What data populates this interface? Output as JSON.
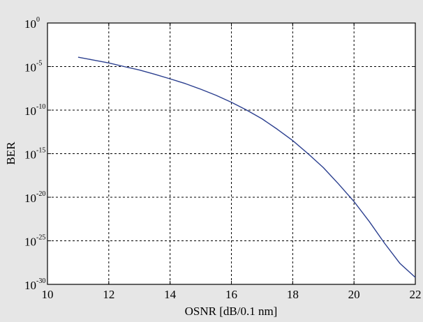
{
  "chart_data": {
    "type": "line",
    "title": "",
    "xlabel": "OSNR [dB/0.1 nm]",
    "ylabel": "BER",
    "xlim": [
      10,
      22
    ],
    "ylim_log10": [
      -30,
      0
    ],
    "y_scale": "log",
    "grid": true,
    "x_ticks": [
      10,
      12,
      14,
      16,
      18,
      20,
      22
    ],
    "y_ticks": [
      {
        "base": "10",
        "exp": "0",
        "log10": 0
      },
      {
        "base": "10",
        "exp": "-5",
        "log10": -5
      },
      {
        "base": "10",
        "exp": "-10",
        "log10": -10
      },
      {
        "base": "10",
        "exp": "-15",
        "log10": -15
      },
      {
        "base": "10",
        "exp": "-20",
        "log10": -20
      },
      {
        "base": "10",
        "exp": "-25",
        "log10": -25
      },
      {
        "base": "10",
        "exp": "-30",
        "log10": -30
      }
    ],
    "series": [
      {
        "color": "#2b3f8f",
        "x": [
          11,
          11.5,
          12,
          12.5,
          13,
          13.5,
          14,
          14.5,
          15,
          15.5,
          16,
          16.5,
          17,
          17.5,
          18,
          18.5,
          19,
          19.5,
          20,
          20.5,
          21,
          21.5,
          22
        ],
        "y": [
          "1.2e-4",
          "5.6e-5",
          "2.6e-5",
          "1.0e-5",
          "4.0e-6",
          "1.3e-6",
          "3.9e-7",
          "1.1e-7",
          "2.5e-8",
          "5.0e-9",
          "8.0e-10",
          "1.0e-10",
          "1.0e-11",
          "6.3e-13",
          "3.2e-14",
          "1.0e-15",
          "2.5e-17",
          "3.2e-19",
          "3.2e-21",
          "1.6e-23",
          "5.0e-26",
          "2.5e-28",
          "6.3e-30"
        ]
      }
    ]
  }
}
